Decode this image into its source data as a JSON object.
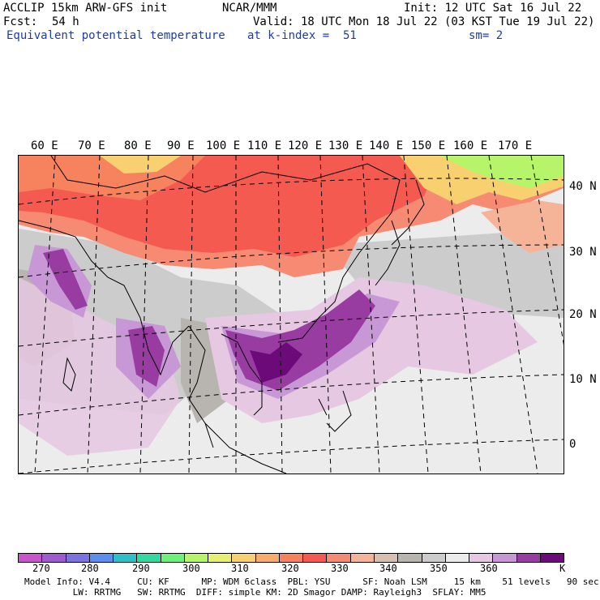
{
  "header": {
    "line1_left": "ACCLIP 15km ARW-GFS init",
    "line1_center": "NCAR/MMM",
    "line1_right": "Init: 12 UTC Sat 16 Jul 22",
    "fcst_label": "Fcst:",
    "fcst_value": "54 h",
    "valid": "Valid: 18 UTC Mon 18 Jul 22 (03 KST Tue 19 Jul 22)",
    "field": "Equivalent potential temperature",
    "level": "at k-index =  51",
    "smooth": "sm= 2"
  },
  "lon_labels": [
    "60 E",
    "70 E",
    "80 E",
    "90 E",
    "100 E",
    "110 E",
    "120 E",
    "130 E",
    "140 E",
    "150 E",
    "160 E",
    "170 E"
  ],
  "lat_labels": [
    "40 N",
    "30 N",
    "20 N",
    "10 N",
    "0"
  ],
  "colorbar": {
    "colors": [
      "#c855cc",
      "#9f5ccf",
      "#7b74e0",
      "#5c8ef0",
      "#2fbfc8",
      "#33d8a0",
      "#6ef07a",
      "#b6f56a",
      "#e8f070",
      "#f8d070",
      "#f7ac6e",
      "#f7825e",
      "#f45a50",
      "#f78a72",
      "#f5b498",
      "#d8c0b0",
      "#b8b4b0",
      "#cccccc",
      "#ececec",
      "#e6c8e2",
      "#c898d6",
      "#983ca2",
      "#6c0a7a"
    ],
    "ticks": [
      "270",
      "280",
      "290",
      "300",
      "310",
      "320",
      "330",
      "340",
      "350",
      "360"
    ],
    "unit": "K"
  },
  "footer": {
    "line1": "Model Info: V4.4     CU: KF      MP: WDM 6class  PBL: YSU      SF: Noah LSM     15 km    51 levels   90 sec",
    "line2": "         LW: RRTMG   SW: RRTMG  DIFF: simple KM: 2D Smagor DAMP: Rayleigh3  SFLAY: MM5"
  }
}
